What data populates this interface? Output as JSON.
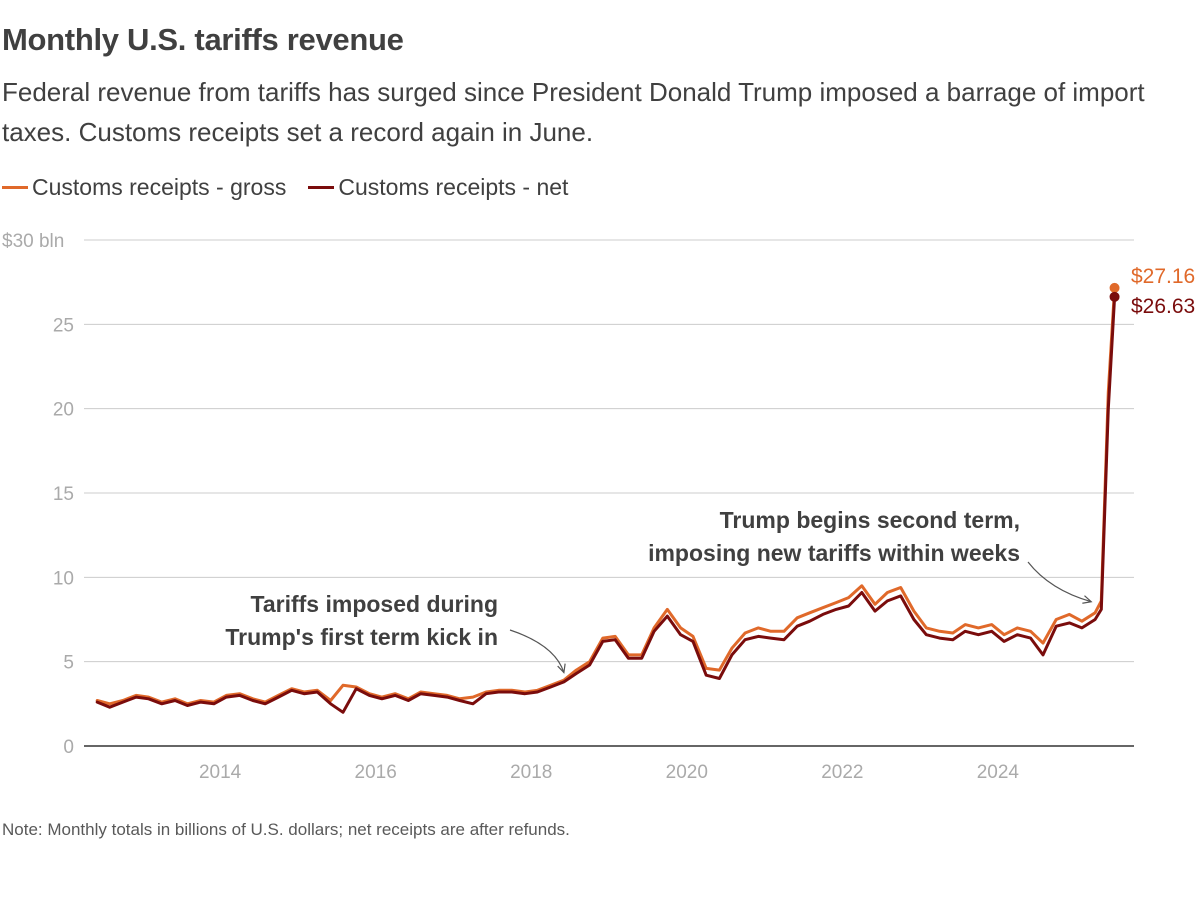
{
  "title": "Monthly U.S. tariffs revenue",
  "subtitle": "Federal revenue from tariffs has surged since President Donald Trump imposed a barrage of import taxes. Customs receipts set a record again in June.",
  "note": "Note: Monthly totals in billions of U.S. dollars; net receipts are after refunds.",
  "colors": {
    "gross": "#e0692a",
    "net": "#7a0c0c",
    "grid": "#cccccc",
    "axis": "#333333"
  },
  "chart_data": {
    "type": "line",
    "x_unit": "year (monthly observations)",
    "x_range": [
      2012.25,
      2025.75
    ],
    "xticks": [
      2014,
      2016,
      2018,
      2020,
      2022,
      2024
    ],
    "xtick_labels": [
      "2014",
      "2016",
      "2018",
      "2020",
      "2022",
      "2024"
    ],
    "ylim": [
      0,
      30
    ],
    "yticks": [
      0,
      5,
      10,
      15,
      20,
      25,
      30
    ],
    "ytick_labels": [
      "0",
      "5",
      "10",
      "15",
      "20",
      "25",
      "$30 bln"
    ],
    "grid": true,
    "legend_position": "top-left",
    "series": [
      {
        "name": "Customs receipts - gross",
        "key": "gross",
        "points": [
          [
            2012.42,
            2.7
          ],
          [
            2012.58,
            2.5
          ],
          [
            2012.75,
            2.7
          ],
          [
            2012.92,
            3.0
          ],
          [
            2013.08,
            2.9
          ],
          [
            2013.25,
            2.6
          ],
          [
            2013.42,
            2.8
          ],
          [
            2013.58,
            2.5
          ],
          [
            2013.75,
            2.7
          ],
          [
            2013.92,
            2.6
          ],
          [
            2014.08,
            3.0
          ],
          [
            2014.25,
            3.1
          ],
          [
            2014.42,
            2.8
          ],
          [
            2014.58,
            2.6
          ],
          [
            2014.75,
            3.0
          ],
          [
            2014.92,
            3.4
          ],
          [
            2015.08,
            3.2
          ],
          [
            2015.25,
            3.3
          ],
          [
            2015.42,
            2.7
          ],
          [
            2015.58,
            3.6
          ],
          [
            2015.75,
            3.5
          ],
          [
            2015.92,
            3.1
          ],
          [
            2016.08,
            2.9
          ],
          [
            2016.25,
            3.1
          ],
          [
            2016.42,
            2.8
          ],
          [
            2016.58,
            3.2
          ],
          [
            2016.75,
            3.1
          ],
          [
            2016.92,
            3.0
          ],
          [
            2017.08,
            2.8
          ],
          [
            2017.25,
            2.9
          ],
          [
            2017.42,
            3.2
          ],
          [
            2017.58,
            3.3
          ],
          [
            2017.75,
            3.3
          ],
          [
            2017.92,
            3.2
          ],
          [
            2018.08,
            3.3
          ],
          [
            2018.25,
            3.6
          ],
          [
            2018.42,
            3.9
          ],
          [
            2018.58,
            4.5
          ],
          [
            2018.75,
            5.0
          ],
          [
            2018.92,
            6.4
          ],
          [
            2019.08,
            6.5
          ],
          [
            2019.25,
            5.4
          ],
          [
            2019.42,
            5.4
          ],
          [
            2019.58,
            7.0
          ],
          [
            2019.75,
            8.1
          ],
          [
            2019.92,
            7.0
          ],
          [
            2020.08,
            6.5
          ],
          [
            2020.25,
            4.6
          ],
          [
            2020.42,
            4.5
          ],
          [
            2020.58,
            5.8
          ],
          [
            2020.75,
            6.7
          ],
          [
            2020.92,
            7.0
          ],
          [
            2021.08,
            6.8
          ],
          [
            2021.25,
            6.8
          ],
          [
            2021.42,
            7.6
          ],
          [
            2021.58,
            7.9
          ],
          [
            2021.75,
            8.2
          ],
          [
            2021.92,
            8.5
          ],
          [
            2022.08,
            8.8
          ],
          [
            2022.25,
            9.5
          ],
          [
            2022.42,
            8.4
          ],
          [
            2022.58,
            9.1
          ],
          [
            2022.75,
            9.4
          ],
          [
            2022.92,
            8.0
          ],
          [
            2023.08,
            7.0
          ],
          [
            2023.25,
            6.8
          ],
          [
            2023.42,
            6.7
          ],
          [
            2023.58,
            7.2
          ],
          [
            2023.75,
            7.0
          ],
          [
            2023.92,
            7.2
          ],
          [
            2024.08,
            6.6
          ],
          [
            2024.25,
            7.0
          ],
          [
            2024.42,
            6.8
          ],
          [
            2024.58,
            6.1
          ],
          [
            2024.75,
            7.5
          ],
          [
            2024.92,
            7.8
          ],
          [
            2025.08,
            7.4
          ],
          [
            2025.25,
            7.9
          ],
          [
            2025.33,
            8.6
          ],
          [
            2025.42,
            21.0
          ],
          [
            2025.5,
            27.16
          ]
        ]
      },
      {
        "name": "Customs receipts - net",
        "key": "net",
        "points": [
          [
            2012.42,
            2.6
          ],
          [
            2012.58,
            2.3
          ],
          [
            2012.75,
            2.6
          ],
          [
            2012.92,
            2.9
          ],
          [
            2013.08,
            2.8
          ],
          [
            2013.25,
            2.5
          ],
          [
            2013.42,
            2.7
          ],
          [
            2013.58,
            2.4
          ],
          [
            2013.75,
            2.6
          ],
          [
            2013.92,
            2.5
          ],
          [
            2014.08,
            2.9
          ],
          [
            2014.25,
            3.0
          ],
          [
            2014.42,
            2.7
          ],
          [
            2014.58,
            2.5
          ],
          [
            2014.75,
            2.9
          ],
          [
            2014.92,
            3.3
          ],
          [
            2015.08,
            3.1
          ],
          [
            2015.25,
            3.2
          ],
          [
            2015.42,
            2.5
          ],
          [
            2015.58,
            2.0
          ],
          [
            2015.75,
            3.4
          ],
          [
            2015.92,
            3.0
          ],
          [
            2016.08,
            2.8
          ],
          [
            2016.25,
            3.0
          ],
          [
            2016.42,
            2.7
          ],
          [
            2016.58,
            3.1
          ],
          [
            2016.75,
            3.0
          ],
          [
            2016.92,
            2.9
          ],
          [
            2017.08,
            2.7
          ],
          [
            2017.25,
            2.5
          ],
          [
            2017.42,
            3.1
          ],
          [
            2017.58,
            3.2
          ],
          [
            2017.75,
            3.2
          ],
          [
            2017.92,
            3.1
          ],
          [
            2018.08,
            3.2
          ],
          [
            2018.25,
            3.5
          ],
          [
            2018.42,
            3.8
          ],
          [
            2018.58,
            4.3
          ],
          [
            2018.75,
            4.8
          ],
          [
            2018.92,
            6.2
          ],
          [
            2019.08,
            6.3
          ],
          [
            2019.25,
            5.2
          ],
          [
            2019.42,
            5.2
          ],
          [
            2019.58,
            6.8
          ],
          [
            2019.75,
            7.7
          ],
          [
            2019.92,
            6.6
          ],
          [
            2020.08,
            6.2
          ],
          [
            2020.25,
            4.2
          ],
          [
            2020.42,
            4.0
          ],
          [
            2020.58,
            5.4
          ],
          [
            2020.75,
            6.3
          ],
          [
            2020.92,
            6.5
          ],
          [
            2021.08,
            6.4
          ],
          [
            2021.25,
            6.3
          ],
          [
            2021.42,
            7.1
          ],
          [
            2021.58,
            7.4
          ],
          [
            2021.75,
            7.8
          ],
          [
            2021.92,
            8.1
          ],
          [
            2022.08,
            8.3
          ],
          [
            2022.25,
            9.1
          ],
          [
            2022.42,
            8.0
          ],
          [
            2022.58,
            8.6
          ],
          [
            2022.75,
            8.9
          ],
          [
            2022.92,
            7.5
          ],
          [
            2023.08,
            6.6
          ],
          [
            2023.25,
            6.4
          ],
          [
            2023.42,
            6.3
          ],
          [
            2023.58,
            6.8
          ],
          [
            2023.75,
            6.6
          ],
          [
            2023.92,
            6.8
          ],
          [
            2024.08,
            6.2
          ],
          [
            2024.25,
            6.6
          ],
          [
            2024.42,
            6.4
          ],
          [
            2024.58,
            5.4
          ],
          [
            2024.75,
            7.1
          ],
          [
            2024.92,
            7.3
          ],
          [
            2025.08,
            7.0
          ],
          [
            2025.25,
            7.5
          ],
          [
            2025.33,
            8.1
          ],
          [
            2025.42,
            20.0
          ],
          [
            2025.5,
            26.63
          ]
        ]
      }
    ],
    "end_labels": [
      {
        "series": "gross",
        "text": "$27.16"
      },
      {
        "series": "net",
        "text": "$26.63"
      }
    ],
    "annotations": [
      {
        "lines": [
          "Tariffs imposed during",
          "Trump's first term kick in"
        ],
        "target": [
          2018.42,
          4.0
        ]
      },
      {
        "lines": [
          "Trump begins second term,",
          "imposing new tariffs within weeks"
        ],
        "target": [
          2025.2,
          8.2
        ]
      }
    ]
  }
}
